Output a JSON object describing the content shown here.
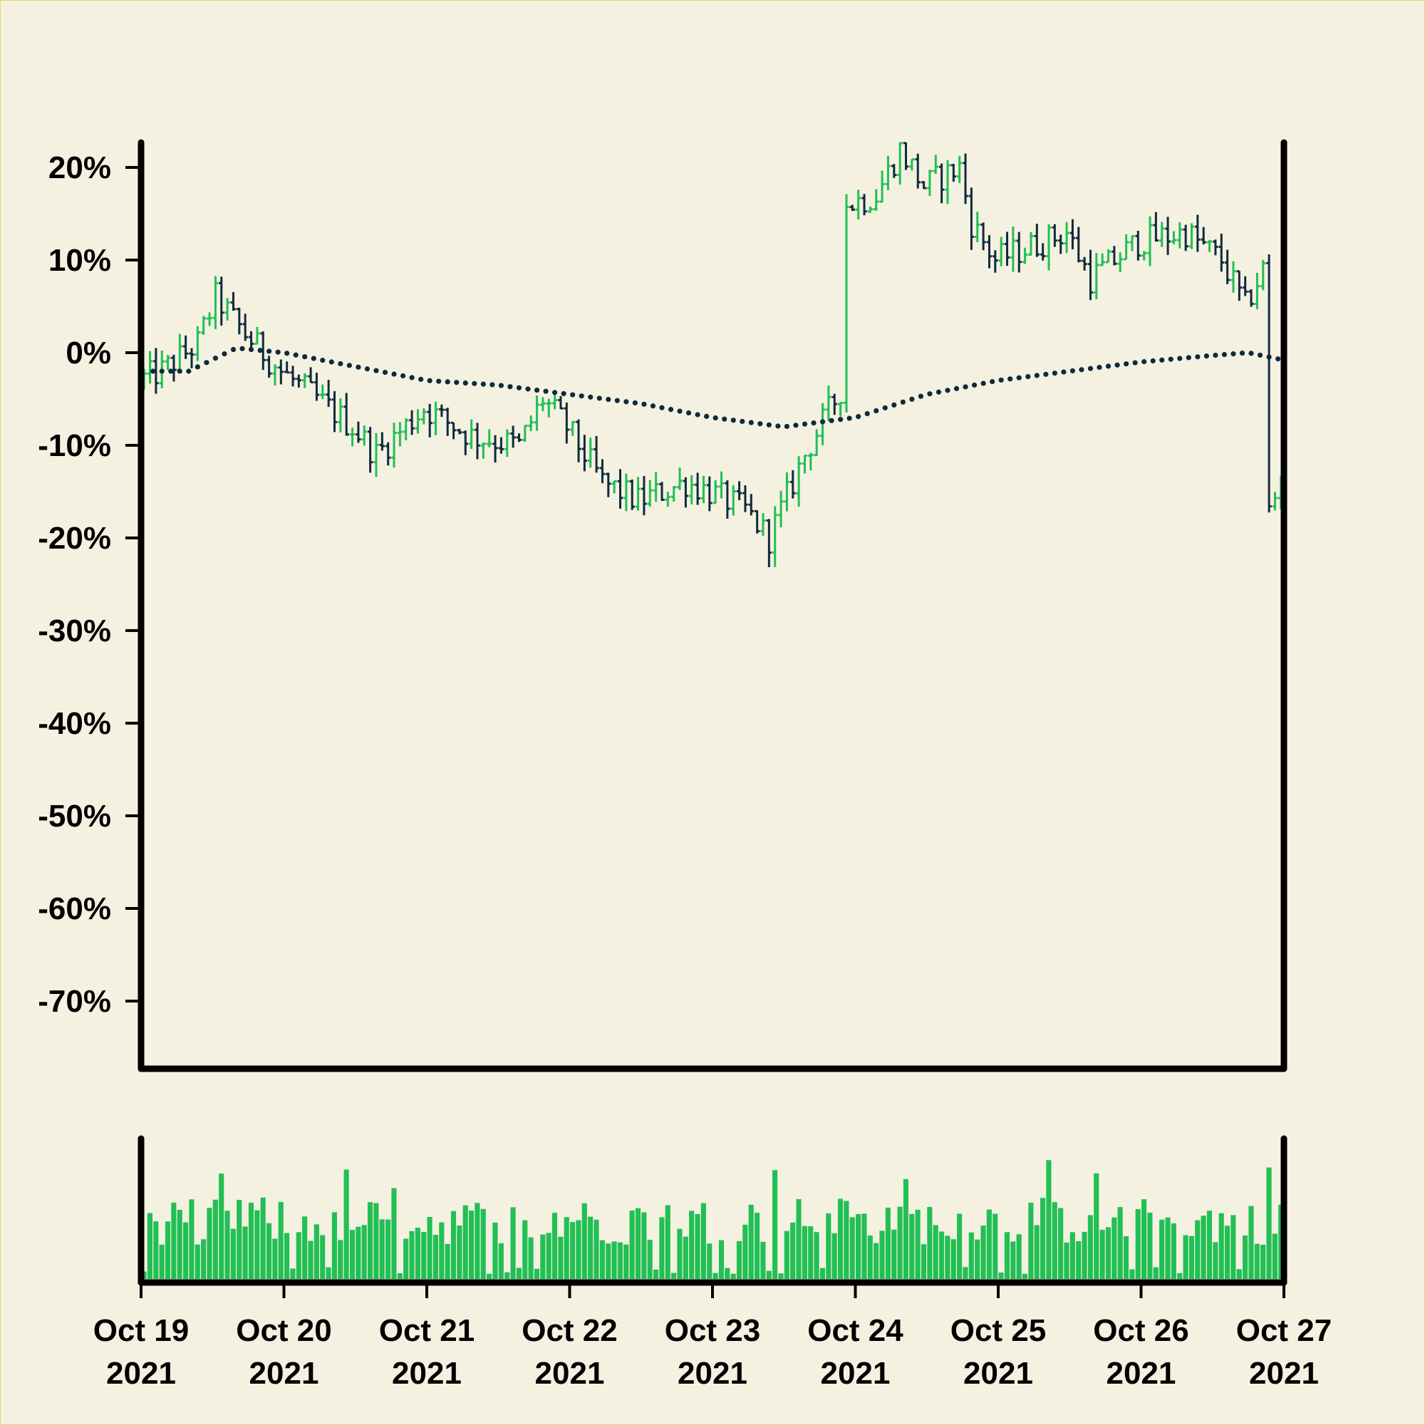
{
  "chart_data": [
    {
      "type": "ohlc",
      "panel": "price",
      "xlabel": "",
      "ylabel": "",
      "ylim": [
        -76,
        23
      ],
      "y_ticks": [
        "20%",
        "10%",
        "0%",
        "-10%",
        "-20%",
        "-30%",
        "-40%",
        "-50%",
        "-60%",
        "-70%"
      ],
      "y_tick_values": [
        20,
        10,
        0,
        -10,
        -20,
        -30,
        -40,
        -50,
        -60,
        -70
      ],
      "x_range": [
        "2021-10-19",
        "2021-10-27"
      ],
      "x_ticks": [
        {
          "date": "2021-10-19",
          "line1": "Oct 19",
          "line2": "2021"
        },
        {
          "date": "2021-10-20",
          "line1": "Oct 20",
          "line2": "2021"
        },
        {
          "date": "2021-10-21",
          "line1": "Oct 21",
          "line2": "2021"
        },
        {
          "date": "2021-10-22",
          "line1": "Oct 22",
          "line2": "2021"
        },
        {
          "date": "2021-10-23",
          "line1": "Oct 23",
          "line2": "2021"
        },
        {
          "date": "2021-10-24",
          "line1": "Oct 24",
          "line2": "2021"
        },
        {
          "date": "2021-10-25",
          "line1": "Oct 25",
          "line2": "2021"
        },
        {
          "date": "2021-10-26",
          "line1": "Oct 26",
          "line2": "2021"
        },
        {
          "date": "2021-10-27",
          "line1": "Oct 27",
          "line2": "2021"
        }
      ],
      "bar_interval_hours": 1,
      "close_path_anchors": [
        {
          "t": "2021-10-19 00:00",
          "v": -3
        },
        {
          "t": "2021-10-19 04:00",
          "v": -2
        },
        {
          "t": "2021-10-19 10:00",
          "v": 1
        },
        {
          "t": "2021-10-19 13:00",
          "v": 6
        },
        {
          "t": "2021-10-19 18:00",
          "v": 2
        },
        {
          "t": "2021-10-20 00:00",
          "v": -2
        },
        {
          "t": "2021-10-20 06:00",
          "v": -5
        },
        {
          "t": "2021-10-20 12:00",
          "v": -8
        },
        {
          "t": "2021-10-20 16:00",
          "v": -11
        },
        {
          "t": "2021-10-21 00:00",
          "v": -6
        },
        {
          "t": "2021-10-21 08:00",
          "v": -9
        },
        {
          "t": "2021-10-21 16:00",
          "v": -10
        },
        {
          "t": "2021-10-21 20:00",
          "v": -5
        },
        {
          "t": "2021-10-22 00:00",
          "v": -8
        },
        {
          "t": "2021-10-22 06:00",
          "v": -14
        },
        {
          "t": "2021-10-22 12:00",
          "v": -16
        },
        {
          "t": "2021-10-22 20:00",
          "v": -14
        },
        {
          "t": "2021-10-23 00:00",
          "v": -15
        },
        {
          "t": "2021-10-23 06:00",
          "v": -17
        },
        {
          "t": "2021-10-23 10:00",
          "v": -20
        },
        {
          "t": "2021-10-23 16:00",
          "v": -11
        },
        {
          "t": "2021-10-23 22:00",
          "v": -4
        },
        {
          "t": "2021-10-23 23:00",
          "v": 16
        },
        {
          "t": "2021-10-24 04:00",
          "v": 17
        },
        {
          "t": "2021-10-24 08:00",
          "v": 22
        },
        {
          "t": "2021-10-24 12:00",
          "v": 18
        },
        {
          "t": "2021-10-24 18:00",
          "v": 20
        },
        {
          "t": "2021-10-24 20:00",
          "v": 14
        },
        {
          "t": "2021-10-25 00:00",
          "v": 10
        },
        {
          "t": "2021-10-25 12:00",
          "v": 13
        },
        {
          "t": "2021-10-25 16:00",
          "v": 8
        },
        {
          "t": "2021-10-26 00:00",
          "v": 12
        },
        {
          "t": "2021-10-26 08:00",
          "v": 13
        },
        {
          "t": "2021-10-26 14:00",
          "v": 10
        },
        {
          "t": "2021-10-26 18:00",
          "v": 5
        },
        {
          "t": "2021-10-26 21:00",
          "v": 9
        },
        {
          "t": "2021-10-26 22:00",
          "v": -17
        },
        {
          "t": "2021-10-27 00:00",
          "v": -14
        }
      ],
      "moving_average_anchors": [
        {
          "t": "2021-10-19 00:00",
          "v": -2
        },
        {
          "t": "2021-10-19 08:00",
          "v": -2
        },
        {
          "t": "2021-10-19 16:00",
          "v": 0.5
        },
        {
          "t": "2021-10-20 00:00",
          "v": 0
        },
        {
          "t": "2021-10-20 12:00",
          "v": -1.5
        },
        {
          "t": "2021-10-21 00:00",
          "v": -3
        },
        {
          "t": "2021-10-21 12:00",
          "v": -3.5
        },
        {
          "t": "2021-10-22 00:00",
          "v": -4.5
        },
        {
          "t": "2021-10-22 12:00",
          "v": -5.5
        },
        {
          "t": "2021-10-23 00:00",
          "v": -7
        },
        {
          "t": "2021-10-23 12:00",
          "v": -8
        },
        {
          "t": "2021-10-24 00:00",
          "v": -7
        },
        {
          "t": "2021-10-24 12:00",
          "v": -4.5
        },
        {
          "t": "2021-10-25 00:00",
          "v": -3
        },
        {
          "t": "2021-10-25 12:00",
          "v": -2
        },
        {
          "t": "2021-10-26 00:00",
          "v": -1
        },
        {
          "t": "2021-10-26 12:00",
          "v": -0.3
        },
        {
          "t": "2021-10-26 18:00",
          "v": 0
        },
        {
          "t": "2021-10-27 00:00",
          "v": -0.8
        }
      ],
      "colors": {
        "up": "#22bf55",
        "down": "#0f2a3c",
        "moving_average": "#0f2a3c",
        "background": "#f5f1e1",
        "axes": "#000000"
      },
      "grid": false,
      "legend": "none"
    },
    {
      "type": "bar",
      "panel": "volume",
      "xlabel": "",
      "ylabel": "",
      "y_ticks": [],
      "volume_relative_range": [
        0.03,
        1.0
      ],
      "colors": {
        "bars": "#22bf55"
      }
    }
  ]
}
